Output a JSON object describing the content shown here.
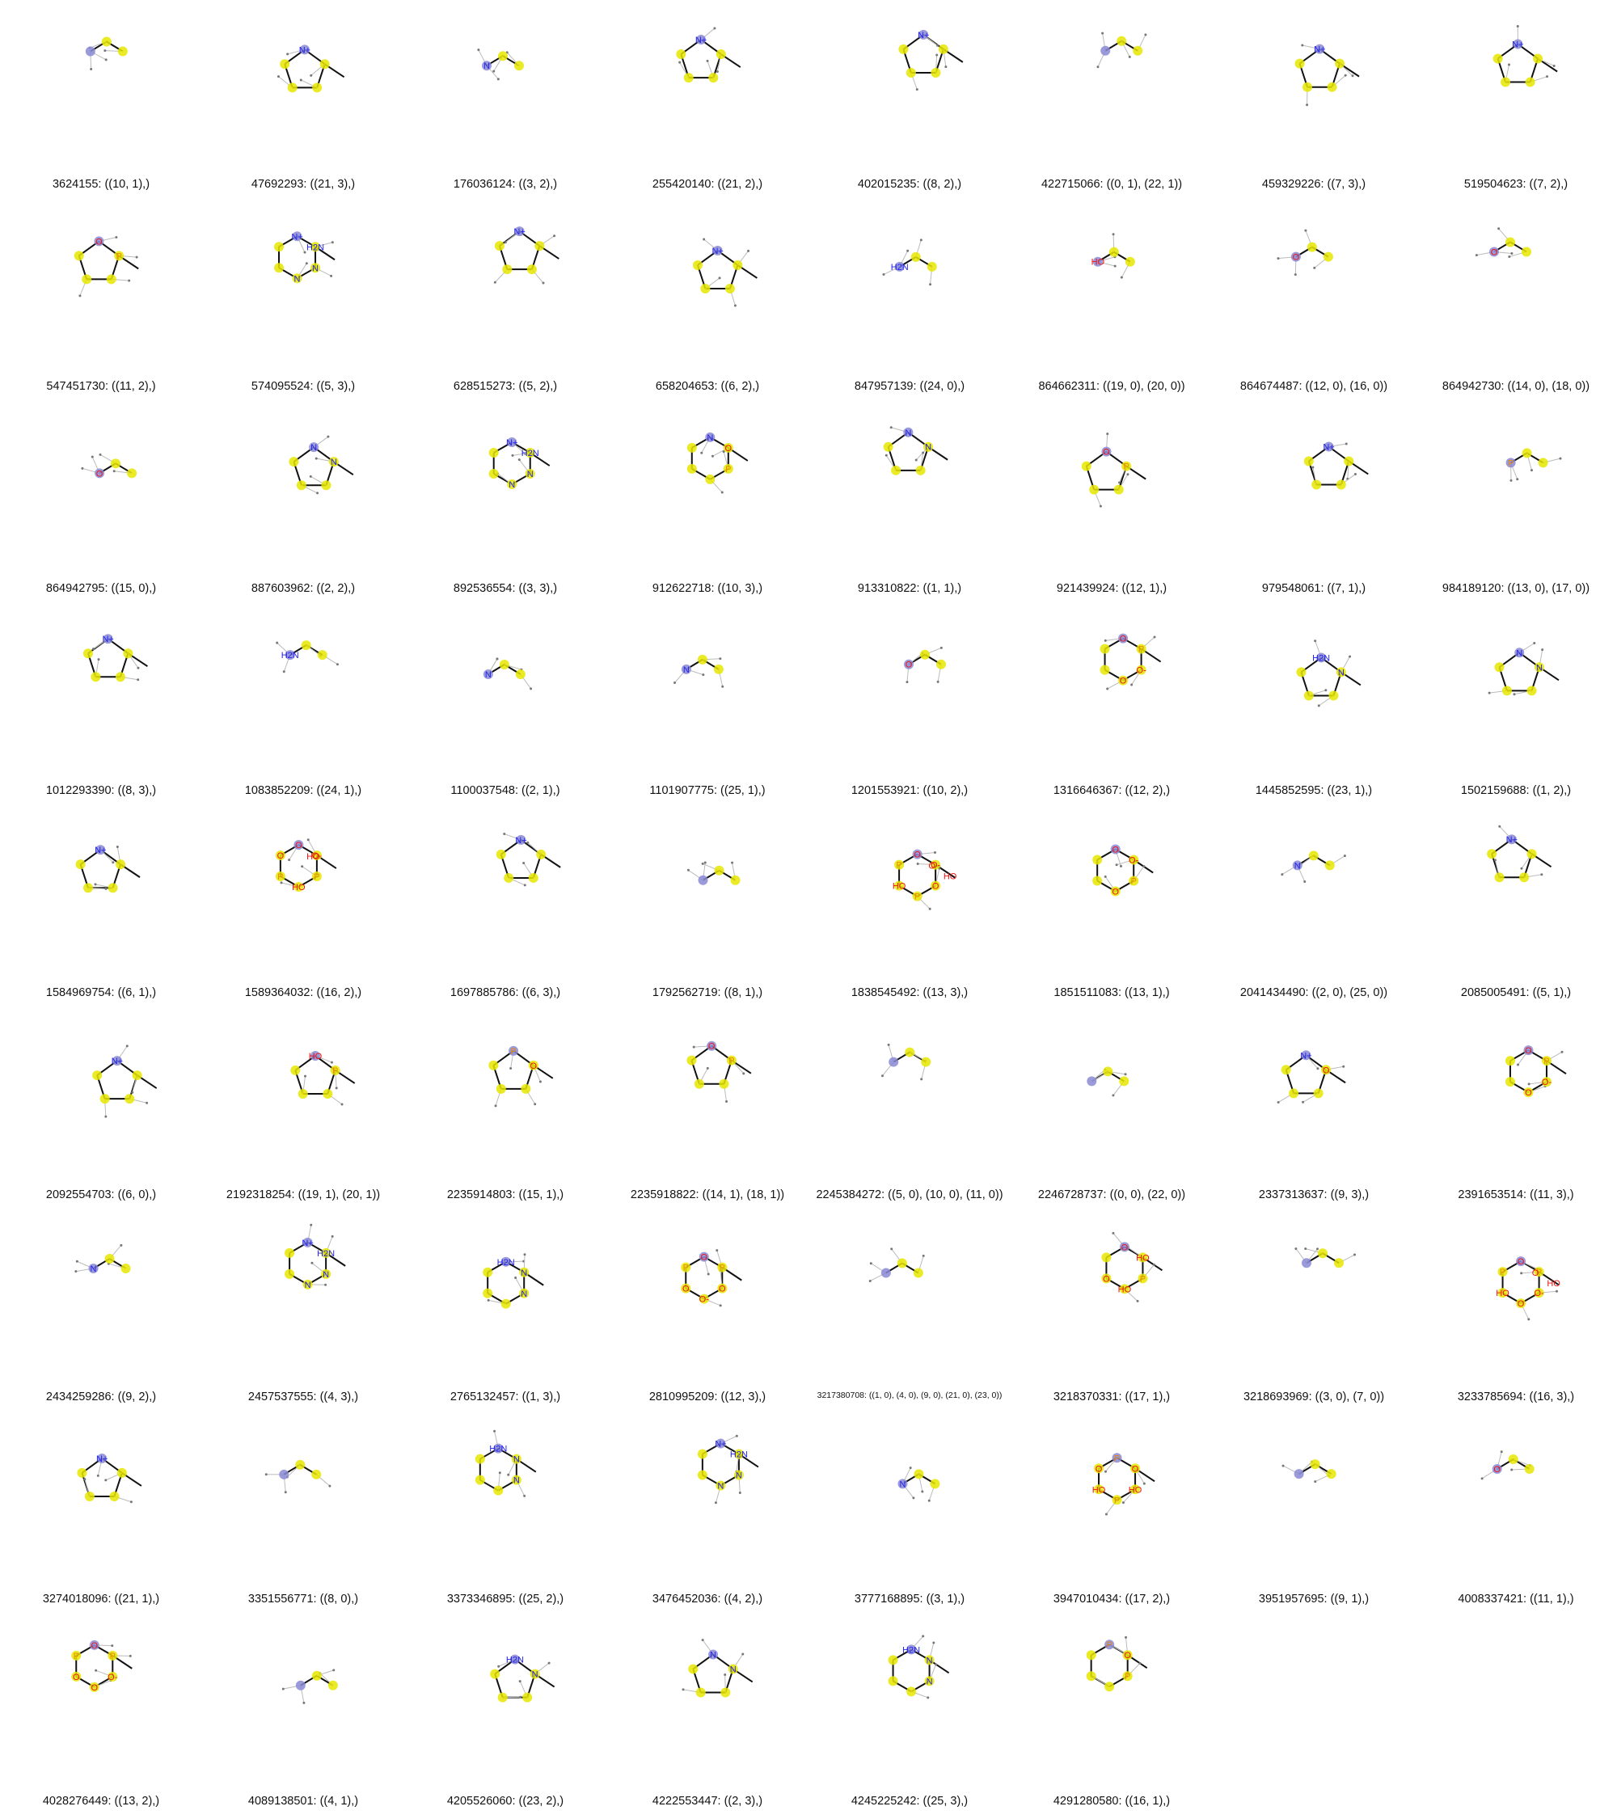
{
  "colors": {
    "highlight_carbon": "#e6e600",
    "highlight_center": "#8a8ad6",
    "bond": "#111111",
    "hydrogen_line": "#bbbbbb",
    "nitrogen": "#2222ee",
    "oxygen": "#ee1111",
    "phosphorus": "#ee8800",
    "sulfur": "#c8c800"
  },
  "grid": {
    "columns": 8,
    "rows": 9
  },
  "molecules": [
    {
      "caption": "3624155: ((10, 1),)",
      "labels": []
    },
    {
      "caption": "47692293: ((21, 3),)",
      "labels": [
        "N+"
      ]
    },
    {
      "caption": "176036124: ((3, 2),)",
      "labels": [
        "N"
      ]
    },
    {
      "caption": "255420140: ((21, 2),)",
      "labels": [
        "N+"
      ]
    },
    {
      "caption": "402015235: ((8, 2),)",
      "labels": [
        "N+"
      ]
    },
    {
      "caption": "422715066: ((0, 1), (22, 1))",
      "labels": []
    },
    {
      "caption": "459329226: ((7, 3),)",
      "labels": [
        "N+"
      ]
    },
    {
      "caption": "519504623: ((7, 2),)",
      "labels": [
        "N+"
      ]
    },
    {
      "caption": "547451730: ((11, 2),)",
      "labels": [
        "O",
        "P"
      ]
    },
    {
      "caption": "574095524: ((5, 3),)",
      "labels": [
        "N+",
        "H2N",
        "N",
        "N"
      ]
    },
    {
      "caption": "628515273: ((5, 2),)",
      "labels": [
        "N+"
      ]
    },
    {
      "caption": "658204653: ((6, 2),)",
      "labels": [
        "N+"
      ]
    },
    {
      "caption": "847957139: ((24, 0),)",
      "labels": [
        "H2N"
      ]
    },
    {
      "caption": "864662311: ((19, 0), (20, 0))",
      "labels": [
        "HO"
      ]
    },
    {
      "caption": "864674487: ((12, 0), (16, 0))",
      "labels": [
        "O"
      ]
    },
    {
      "caption": "864942730: ((14, 0), (18, 0))",
      "labels": [
        "O"
      ]
    },
    {
      "caption": "864942795: ((15, 0),)",
      "labels": [
        "O"
      ]
    },
    {
      "caption": "887603962: ((2, 2),)",
      "labels": [
        "N",
        "N"
      ]
    },
    {
      "caption": "892536554: ((3, 3),)",
      "labels": [
        "N+",
        "H2N",
        "N",
        "N"
      ]
    },
    {
      "caption": "912622718: ((10, 3),)",
      "labels": [
        "N",
        "O",
        "P"
      ]
    },
    {
      "caption": "913310822: ((1, 1),)",
      "labels": [
        "N",
        "N"
      ]
    },
    {
      "caption": "921439924: ((12, 1),)",
      "labels": [
        "O",
        "P"
      ]
    },
    {
      "caption": "979548061: ((7, 1),)",
      "labels": [
        "N+"
      ]
    },
    {
      "caption": "984189120: ((13, 0), (17, 0))",
      "labels": [
        "P"
      ]
    },
    {
      "caption": "1012293390: ((8, 3),)",
      "labels": [
        "N+"
      ]
    },
    {
      "caption": "1083852209: ((24, 1),)",
      "labels": [
        "H2N"
      ]
    },
    {
      "caption": "1100037548: ((2, 1),)",
      "labels": [
        "N"
      ]
    },
    {
      "caption": "1101907775: ((25, 1),)",
      "labels": [
        "N"
      ]
    },
    {
      "caption": "1201553921: ((10, 2),)",
      "labels": [
        "O"
      ]
    },
    {
      "caption": "1316646367: ((12, 2),)",
      "labels": [
        "O",
        "P",
        "O-",
        "O"
      ]
    },
    {
      "caption": "1445852595: ((23, 1),)",
      "labels": [
        "H2N",
        "N"
      ]
    },
    {
      "caption": "1502159688: ((1, 2),)",
      "labels": [
        "N",
        "N"
      ]
    },
    {
      "caption": "1584969754: ((6, 1),)",
      "labels": [
        "N+"
      ]
    },
    {
      "caption": "1589364032: ((16, 2),)",
      "labels": [
        "O",
        "O-",
        "P",
        "HO",
        "P",
        "O",
        "HO"
      ]
    },
    {
      "caption": "1697885786: ((6, 3),)",
      "labels": [
        "N+"
      ]
    },
    {
      "caption": "1792562719: ((8, 1),)",
      "labels": []
    },
    {
      "caption": "1838545492: ((13, 3),)",
      "labels": [
        "O",
        "O-",
        "O",
        "P",
        "HO",
        "P",
        "O",
        "HO"
      ]
    },
    {
      "caption": "1851511083: ((13, 1),)",
      "labels": [
        "O",
        "O-",
        "P",
        "O"
      ]
    },
    {
      "caption": "2041434490: ((2, 0), (25, 0))",
      "labels": [
        "N"
      ]
    },
    {
      "caption": "2085005491: ((5, 1),)",
      "labels": [
        "N+"
      ]
    },
    {
      "caption": "2092554703: ((6, 0),)",
      "labels": [
        "N+"
      ]
    },
    {
      "caption": "2192318254: ((19, 1), (20, 1))",
      "labels": [
        "HO",
        "P"
      ]
    },
    {
      "caption": "2235914803: ((15, 1),)",
      "labels": [
        "P",
        "O"
      ]
    },
    {
      "caption": "2235918822: ((14, 1), (18, 1))",
      "labels": [
        "O",
        "P"
      ]
    },
    {
      "caption": "2245384272: ((5, 0), (10, 0), (11, 0))",
      "labels": []
    },
    {
      "caption": "2246728737: ((0, 0), (22, 0))",
      "labels": []
    },
    {
      "caption": "2337313637: ((9, 3),)",
      "labels": [
        "N+",
        "O"
      ]
    },
    {
      "caption": "2391653514: ((11, 3),)",
      "labels": [
        "O",
        "P",
        "O-",
        "O"
      ]
    },
    {
      "caption": "2434259286: ((9, 2),)",
      "labels": [
        "N"
      ]
    },
    {
      "caption": "2457537555: ((4, 3),)",
      "labels": [
        "N+",
        "H2N",
        "N",
        "N"
      ]
    },
    {
      "caption": "2765132457: ((1, 3),)",
      "labels": [
        "H2N",
        "N",
        "N"
      ]
    },
    {
      "caption": "2810995209: ((12, 3),)",
      "labels": [
        "O",
        "P",
        "O",
        "O-",
        "O",
        "P"
      ]
    },
    {
      "caption": "3217380708: ((1, 0), (4, 0), (9, 0), (21, 0), (23, 0))",
      "labels": []
    },
    {
      "caption": "3218370331: ((17, 1),)",
      "labels": [
        "O",
        "HO",
        "P",
        "HO",
        "O"
      ]
    },
    {
      "caption": "3218693969: ((3, 0), (7, 0))",
      "labels": []
    },
    {
      "caption": "3233785694: ((16, 3),)",
      "labels": [
        "O",
        "P",
        "O-",
        "O",
        "HO",
        "P",
        "O",
        "HO"
      ]
    },
    {
      "caption": "3274018096: ((21, 1),)",
      "labels": [
        "N+"
      ]
    },
    {
      "caption": "3351556771: ((8, 0),)",
      "labels": []
    },
    {
      "caption": "3373346895: ((25, 2),)",
      "labels": [
        "H2N",
        "N",
        "N"
      ]
    },
    {
      "caption": "3476452036: ((4, 2),)",
      "labels": [
        "N+",
        "H2N",
        "N",
        "N"
      ]
    },
    {
      "caption": "3777168895: ((3, 1),)",
      "labels": [
        "N"
      ]
    },
    {
      "caption": "3947010434: ((17, 2),)",
      "labels": [
        "P",
        "O",
        "HO",
        "P",
        "HO",
        "O"
      ]
    },
    {
      "caption": "3951957695: ((9, 1),)",
      "labels": []
    },
    {
      "caption": "4008337421: ((11, 1),)",
      "labels": [
        "O"
      ]
    },
    {
      "caption": "4028276449: ((13, 2),)",
      "labels": [
        "O",
        "P",
        "O-",
        "O",
        "O",
        "P"
      ]
    },
    {
      "caption": "4089138501: ((4, 1),)",
      "labels": []
    },
    {
      "caption": "4205526060: ((23, 2),)",
      "labels": [
        "H2N",
        "N"
      ]
    },
    {
      "caption": "4222553447: ((2, 3),)",
      "labels": [
        "N",
        "N"
      ]
    },
    {
      "caption": "4245225242: ((25, 3),)",
      "labels": [
        "H2N",
        "N",
        "N"
      ]
    },
    {
      "caption": "4291280580: ((16, 1),)",
      "labels": [
        "P",
        "O",
        "P"
      ]
    }
  ]
}
